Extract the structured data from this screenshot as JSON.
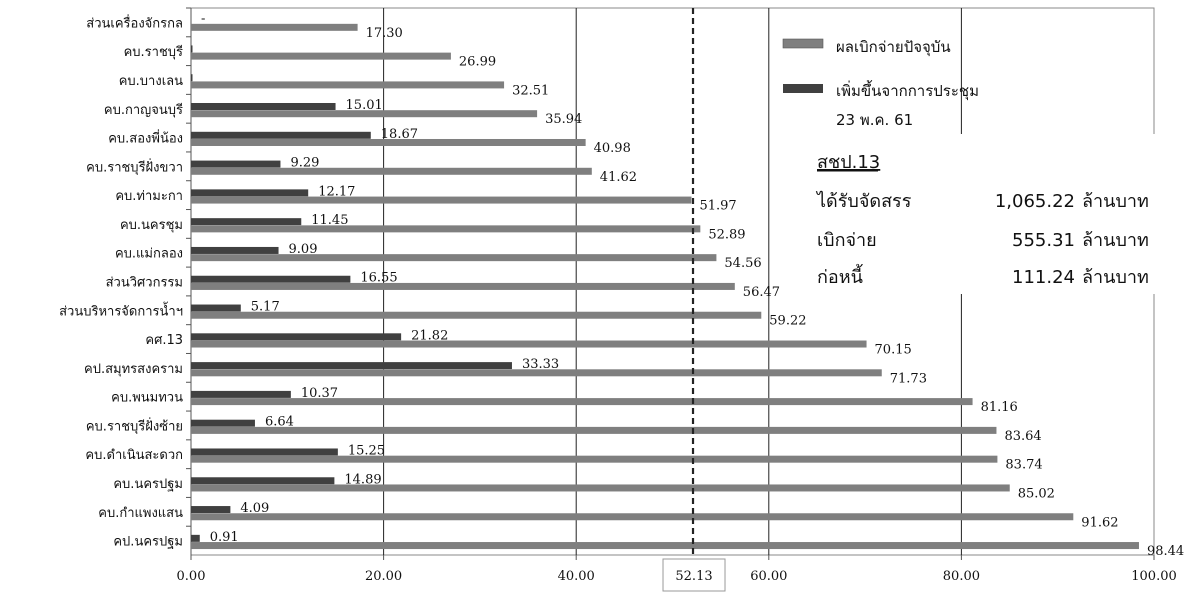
{
  "chart_data": {
    "type": "bar",
    "orientation": "horizontal",
    "categories": [
      "ส่วนเครื่องจักรกล",
      "คบ.ราชบุรี",
      "คบ.บางเลน",
      "คบ.กาญจนบุรี",
      "คบ.สองพี่น้อง",
      "คบ.ราชบุรีฝั่งขวา",
      "คบ.ท่ามะกา",
      "คบ.นครชุม",
      "คบ.แม่กลอง",
      "ส่วนวิศวกรรม",
      "ส่วนบริหารจัดการน้ำฯ",
      "คศ.13",
      "คป.สมุทรสงคราม",
      "คบ.พนมทวน",
      "คบ.ราชบุรีฝั่งซ้าย",
      "คบ.ดำเนินสะดวก",
      "คบ.นครปฐม",
      "คบ.กำแพงแสน",
      "คป.นครปฐม"
    ],
    "series": [
      {
        "name": "ผลเบิกจ่ายปัจจุบัน",
        "color": "#7f7f7f",
        "values": [
          17.3,
          26.99,
          32.51,
          35.94,
          40.98,
          41.62,
          51.97,
          52.89,
          54.56,
          56.47,
          59.22,
          70.15,
          71.73,
          81.16,
          83.64,
          83.74,
          85.02,
          91.62,
          98.44
        ],
        "labels": [
          "17.30",
          "26.99",
          "32.51",
          "35.94",
          "40.98",
          "41.62",
          "51.97",
          "52.89",
          "54.56",
          "56.47",
          "59.22",
          "70.15",
          "71.73",
          "81.16",
          "83.64",
          "83.74",
          "85.02",
          "91.62",
          "98.44"
        ]
      },
      {
        "name": "เพิ่มขึ้นจากการประชุม",
        "name_line2": "23 พ.ค. 61",
        "color": "#404040",
        "values": [
          null,
          0.1,
          0.1,
          15.01,
          18.67,
          9.29,
          12.17,
          11.45,
          9.09,
          16.55,
          5.17,
          21.82,
          33.33,
          10.37,
          6.64,
          15.25,
          14.89,
          4.09,
          0.91
        ],
        "labels": [
          "-",
          "",
          "",
          "15.01",
          "18.67",
          "9.29",
          "12.17",
          "11.45",
          "9.09",
          "16.55",
          "5.17",
          "21.82",
          "33.33",
          "10.37",
          "6.64",
          "15.25",
          "14.89",
          "4.09",
          "0.91"
        ]
      }
    ],
    "xlim": [
      0,
      100
    ],
    "xticks": [
      "0.00",
      "20.00",
      "40.00",
      "60.00",
      "80.00",
      "100.00"
    ],
    "xtick_values": [
      0,
      20,
      40,
      60,
      80,
      100
    ],
    "reference_line": {
      "value": 52.13,
      "label": "52.13",
      "style": "dashed"
    },
    "grid": true,
    "legend_position": "top-right"
  },
  "info_box": {
    "title": "สชป.13",
    "rows": [
      {
        "label": "ได้รับจัดสรร",
        "value": "1,065.22",
        "unit": "ล้านบาท"
      },
      {
        "label": "เบิกจ่าย",
        "value": "555.31",
        "unit": "ล้านบาท"
      },
      {
        "label": "ก่อหนี้",
        "value": "111.24",
        "unit": "ล้านบาท"
      }
    ]
  }
}
